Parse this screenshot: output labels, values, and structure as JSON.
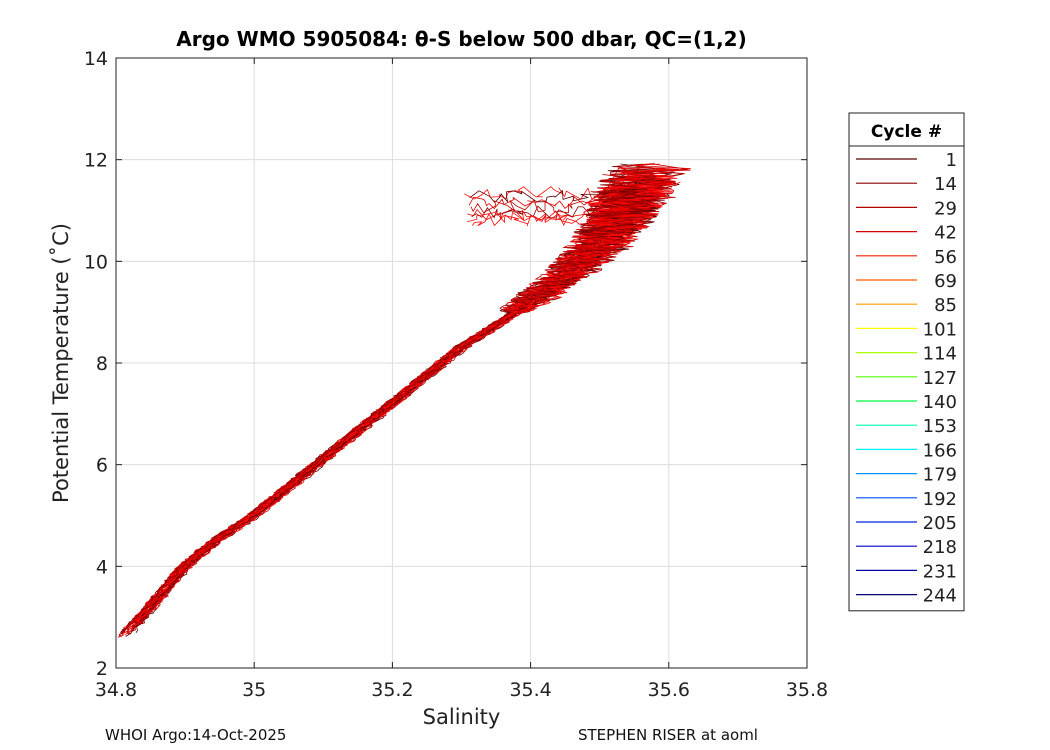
{
  "chart_data": {
    "type": "line",
    "title": "Argo WMO 5905084: θ-S below 500 dbar,  QC=(1,2)",
    "xlabel": "Salinity",
    "ylabel": "Potential Temperature (˚C)",
    "xlim": [
      34.8,
      35.8
    ],
    "ylim": [
      2,
      14
    ],
    "xticks": [
      "34.8",
      "35",
      "35.2",
      "35.4",
      "35.6",
      "35.8"
    ],
    "xtick_values": [
      34.8,
      35.0,
      35.2,
      35.4,
      35.6,
      35.8
    ],
    "yticks": [
      "2",
      "4",
      "6",
      "8",
      "10",
      "12",
      "14"
    ],
    "ytick_values": [
      2,
      4,
      6,
      8,
      10,
      12,
      14
    ],
    "grid": true,
    "legend": {
      "title": "Cycle #",
      "placement": "right-outside",
      "entries": [
        {
          "label": "1",
          "color": "#5a0000"
        },
        {
          "label": "14",
          "color": "#8a0000"
        },
        {
          "label": "29",
          "color": "#b00000"
        },
        {
          "label": "42",
          "color": "#d40000"
        },
        {
          "label": "56",
          "color": "#f02000"
        },
        {
          "label": "69",
          "color": "#ff5500"
        },
        {
          "label": "85",
          "color": "#ff9a00"
        },
        {
          "label": "101",
          "color": "#ffff00"
        },
        {
          "label": "114",
          "color": "#aaff00"
        },
        {
          "label": "127",
          "color": "#55ff00"
        },
        {
          "label": "140",
          "color": "#00ff40"
        },
        {
          "label": "153",
          "color": "#00ffb0"
        },
        {
          "label": "166",
          "color": "#00f0ff"
        },
        {
          "label": "179",
          "color": "#0090ff"
        },
        {
          "label": "192",
          "color": "#0050ff"
        },
        {
          "label": "205",
          "color": "#0020e0"
        },
        {
          "label": "218",
          "color": "#0000c8"
        },
        {
          "label": "231",
          "color": "#0000a8"
        },
        {
          "label": "244",
          "color": "#000080"
        }
      ]
    },
    "base_profile": {
      "salinity": [
        34.815,
        34.86,
        34.9,
        34.95,
        35.0,
        35.1,
        35.2,
        35.3,
        35.38,
        35.43,
        35.47,
        35.5,
        35.53,
        35.55,
        35.57
      ],
      "temperature": [
        2.65,
        3.35,
        4.0,
        4.55,
        5.0,
        6.1,
        7.2,
        8.3,
        9.0,
        9.5,
        9.9,
        10.3,
        10.8,
        11.3,
        11.8
      ]
    },
    "profile_count": 40,
    "plotted_colors": [
      "#ff0000",
      "#e00000",
      "#c00000",
      "#900000",
      "#600000",
      "#ff1010"
    ]
  },
  "footer": {
    "left": "WHOI Argo:14-Oct-2025",
    "right": "STEPHEN RISER at aoml"
  }
}
